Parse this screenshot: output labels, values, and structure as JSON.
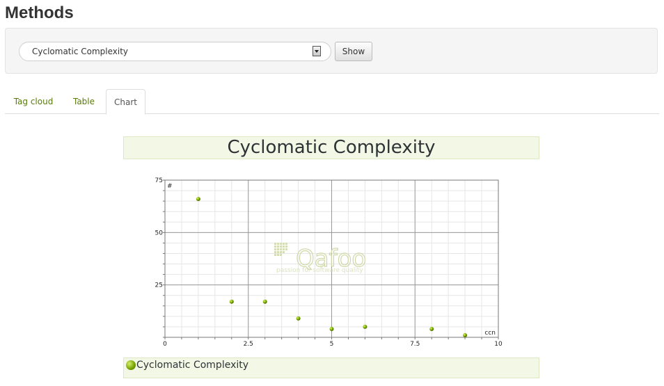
{
  "page": {
    "title": "Methods"
  },
  "form": {
    "select_value": "Cyclomatic Complexity",
    "show_label": "Show"
  },
  "tabs": [
    {
      "label": "Tag cloud",
      "active": false
    },
    {
      "label": "Table",
      "active": false
    },
    {
      "label": "Chart",
      "active": true
    }
  ],
  "watermark": {
    "brand": "Qafoo",
    "tagline": "passion for software quality"
  },
  "colors": {
    "accent": "#5a7a0a",
    "point": "#7fb000"
  },
  "chart_data": {
    "type": "scatter",
    "title": "Cyclomatic Complexity",
    "xlabel": "ccn",
    "ylabel": "#",
    "xlim": [
      0,
      10
    ],
    "ylim": [
      0,
      75
    ],
    "x_ticks": [
      {
        "value": 0,
        "label": "0"
      },
      {
        "value": 2.5,
        "label": "2.5"
      },
      {
        "value": 5,
        "label": "5"
      },
      {
        "value": 7.5,
        "label": "7.5"
      },
      {
        "value": 10,
        "label": "10"
      }
    ],
    "y_ticks": [
      {
        "value": 25,
        "label": "25"
      },
      {
        "value": 50,
        "label": "50"
      },
      {
        "value": 75,
        "label": "75"
      }
    ],
    "grid": true,
    "legend_position": "bottom",
    "series": [
      {
        "name": "Cyclomatic Complexity",
        "points": [
          {
            "x": 1,
            "y": 66
          },
          {
            "x": 2,
            "y": 17
          },
          {
            "x": 3,
            "y": 17
          },
          {
            "x": 4,
            "y": 9
          },
          {
            "x": 5,
            "y": 4
          },
          {
            "x": 6,
            "y": 5
          },
          {
            "x": 8,
            "y": 4
          },
          {
            "x": 9,
            "y": 1
          }
        ]
      }
    ]
  }
}
